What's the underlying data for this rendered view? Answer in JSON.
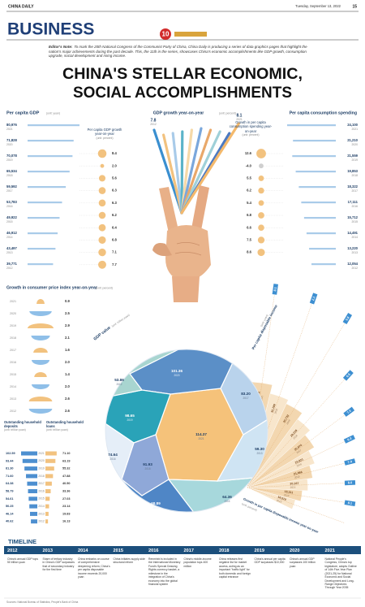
{
  "header": {
    "paper": "CHINA DAILY",
    "date": "Tuesday, September 13, 2022",
    "page": "15",
    "section": "BUSINESS",
    "logo": "10"
  },
  "editors_note": {
    "label": "Editor's Note:",
    "text": "To mark the 20th National Congress of the Communist Party of China, China Daily is producing a series of data graphics pages that highlight the nation's major achievements during the past decade. This, the 11th in the series, showcases China's economic accomplishments like GDP growth, consumption upgrade, social development and rising income."
  },
  "title": [
    "CHINA'S STELLAR ECONOMIC,",
    "SOCIAL ACCOMPLISHMENTS"
  ],
  "per_capita_gdp": {
    "title": "Per capita GDP",
    "unit": "(unit: yuan)",
    "years": [
      "2021",
      "2020",
      "2019",
      "2018",
      "2017",
      "2016",
      "2015",
      "2014",
      "2013",
      "2012"
    ],
    "values": [
      80976,
      71828,
      70078,
      65534,
      59592,
      53783,
      49922,
      46912,
      43497,
      39771
    ],
    "value_labels": [
      "80,976",
      "71,828",
      "70,078",
      "65,534",
      "59,592",
      "53,783",
      "49,922",
      "46,912",
      "43,497",
      "39,771"
    ],
    "growth_title": "Per capita GDP growth year-on-year",
    "growth_unit": "(unit: percent)",
    "growth": [
      8.4,
      2.0,
      5.6,
      6.3,
      6.3,
      6.2,
      6.4,
      6.8,
      7.1,
      7.7
    ],
    "growth_labels": [
      "8.4",
      "2.0",
      "5.6",
      "6.3",
      "6.3",
      "6.2",
      "6.4",
      "6.8",
      "7.1",
      "7.7"
    ]
  },
  "gdp_growth": {
    "title": "GDP growth year-on-year",
    "unit": "(unit: percent)",
    "years": [
      "2012",
      "2021"
    ],
    "values": [
      7.8,
      8.1
    ]
  },
  "consumption": {
    "title": "Per capita consumption spending",
    "years": [
      "2021",
      "2020",
      "2019",
      "2018",
      "2017",
      "2016",
      "2015",
      "2014",
      "2013",
      "2012"
    ],
    "values": [
      24100,
      21210,
      21559,
      19853,
      18322,
      17111,
      15712,
      14491,
      13220,
      12054
    ],
    "value_labels": [
      "24,100",
      "21,210",
      "21,559",
      "19,853",
      "18,322",
      "17,111",
      "15,712",
      "14,491",
      "13,220",
      "12,054"
    ],
    "growth_title": "Growth in per capita consumption spending year-on-year",
    "growth_unit": "(unit: percent)",
    "growth": [
      12.6,
      -4.0,
      5.5,
      6.2,
      5.4,
      6.8,
      6.6,
      7.5,
      8.6
    ],
    "growth_labels": [
      "12.6",
      "-4.0",
      "5.5",
      "6.2",
      "5.4",
      "6.8",
      "6.6",
      "7.5",
      "8.6"
    ]
  },
  "cpi": {
    "title": "Growth in consumer price index year-on-year",
    "unit": "(unit: percent)",
    "years": [
      "2021",
      "2020",
      "2019",
      "2018",
      "2017",
      "2016",
      "2015",
      "2014",
      "2013",
      "2012"
    ],
    "values": [
      0.9,
      2.5,
      2.9,
      2.1,
      1.6,
      2.0,
      1.4,
      2.0,
      2.6,
      2.6
    ],
    "value_labels": [
      "0.9",
      "2.5",
      "2.9",
      "2.1",
      "1.6",
      "2.0",
      "1.4",
      "2.0",
      "2.6",
      "2.6"
    ]
  },
  "household": {
    "deposits_title": "Outstanding household deposits",
    "loans_title": "Outstanding household loans",
    "unit": "(unit: trillion yuan)",
    "years": [
      "2021",
      "2020",
      "2019",
      "2018",
      "2017",
      "2016",
      "2015",
      "2014",
      "2013",
      "2012"
    ],
    "deposits": [
      102.59,
      93.44,
      81.3,
      71.6,
      64.38,
      58.79,
      54.61,
      50.25,
      46.14,
      40.62
    ],
    "deposit_labels": [
      "102.59",
      "93.44",
      "81.30",
      "71.60",
      "64.38",
      "58.79",
      "54.61",
      "50.25",
      "46.14",
      "40.62"
    ],
    "loans": [
      71.1,
      63.19,
      55.32,
      47.88,
      40.5,
      33.36,
      27.03,
      23.14,
      19.83,
      16.13
    ],
    "loan_labels": [
      "71.10",
      "63.19",
      "55.32",
      "47.88",
      "40.50",
      "33.36",
      "27.03",
      "23.14",
      "19.83",
      "16.13"
    ]
  },
  "gdp_value": {
    "title": "GDP value",
    "unit": "(unit: trillion yuan)",
    "years": [
      "2021",
      "2020",
      "2019",
      "2018",
      "2017",
      "2016",
      "2015",
      "2014",
      "2013",
      "2012"
    ],
    "values": [
      114.37,
      101.36,
      98.65,
      91.93,
      83.2,
      74.64,
      68.89,
      64.36,
      59.3,
      53.86
    ],
    "value_labels": [
      "114.37",
      "101.36",
      "98.65",
      "91.93",
      "83.20",
      "74.64",
      "68.89",
      "64.36",
      "59.30",
      "53.86"
    ]
  },
  "disposable_income": {
    "title": "Per capita disposable income",
    "unit": "(unit: yuan)",
    "years": [
      "2021",
      "2020",
      "2019",
      "2018",
      "2017",
      "2016",
      "2015",
      "2014",
      "2013",
      "2012"
    ],
    "values": [
      35128,
      32189,
      30733,
      28228,
      25974,
      23821,
      21966,
      20167,
      18311,
      16510
    ],
    "value_labels": [
      "35,128",
      "32,189",
      "30,733",
      "28,228",
      "25,974",
      "23,821",
      "21,966",
      "20,167",
      "18,311",
      "16,510"
    ],
    "growth_title": "Growth in per capita disposable income year-on-year",
    "growth_unit": "(unit: percent)",
    "growth": [
      8.1,
      2.1,
      5.8,
      6.5,
      7.3,
      6.3,
      7.4,
      8.0,
      8.1
    ],
    "growth_labels": [
      "8.1",
      "2.1",
      "5.8",
      "6.5",
      "7.3",
      "6.3",
      "7.4",
      "8.0",
      "8.1"
    ]
  },
  "timeline": {
    "title": "TIMELINE",
    "events": [
      {
        "year": "2012",
        "text": "China's annual GDP tops 50 trillion yuan"
      },
      {
        "year": "2013",
        "text": "Share of tertiary industry in China's GDP surpasses that of secondary industry for the first time"
      },
      {
        "year": "2014",
        "text": "China embarks on course of comprehensive deepening reform; China's per capita disposable income exceeds 20,000 yuan"
      },
      {
        "year": "2015",
        "text": "China initiates supply-side structural reform"
      },
      {
        "year": "2016",
        "text": "Renminbi is included in the International Monetary Fund's Special Drawing Rights currency basket, a milestone in the integration of China's economy into the global financial system"
      },
      {
        "year": "2017",
        "text": "China's middle-income population tops 400 million"
      },
      {
        "year": "2018",
        "text": "China releases first negative list for market access, acting as an important \"traffic light\" for both domestic and foreign capital entrance"
      },
      {
        "year": "2019",
        "text": "China's annual per capita GDP surpasses $10,000"
      },
      {
        "year": "2020",
        "text": "China's annual GDP surpasses 100 trillion yuan"
      },
      {
        "year": "2021",
        "text": "National People's Congress, China's top legislature, adopts Outline of 14th Five-Year Plan (2021-25) for National Economic and Social Development and Long-Range Objectives Through Year 2035"
      }
    ]
  },
  "footer": {
    "sources": "Sources: National Bureau of Statistics, People's Bank of China"
  }
}
